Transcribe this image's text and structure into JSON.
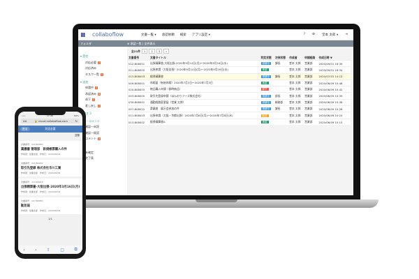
{
  "app": {
    "logo": "collaboflow",
    "menu": [
      "文書一覧 ▾",
      "承認依頼",
      "検索",
      "アプリ設定 ▾"
    ],
    "help": "?",
    "gear": "⚙",
    "user": "堂本 太郎 ▾",
    "logout": "⇥"
  },
  "bar": {
    "folder": "フォルダ",
    "crumb": "⊕ 承認一覧 | 全件表示"
  },
  "sidebar": [
    {
      "group": "▾ 受信",
      "items": [
        {
          "label": "対応必要",
          "badge": "2"
        },
        {
          "label": "対応済み",
          "badge": ""
        },
        {
          "label": "タスク一覧",
          "badge": "2"
        }
      ]
    },
    {
      "group": "▾ 送信",
      "items": [
        {
          "label": "申請中",
          "badge": "2"
        },
        {
          "label": "承認済み",
          "badge": "8"
        },
        {
          "label": "却下",
          "badge": "2"
        },
        {
          "label": "差し戻し",
          "badge": "2"
        }
      ]
    },
    {
      "group": "下書き 3",
      "items": []
    },
    {
      "group": "確認・コメント",
      "items": [
        {
          "label": "確認一未読",
          "badge": ""
        },
        {
          "label": "確認一既読",
          "badge": ""
        },
        {
          "label": "コメント",
          "badge": "4"
        }
      ]
    },
    {
      "group": "一般",
      "items": [
        {
          "label": "未確定",
          "badge": ""
        },
        {
          "label": "完了表",
          "badge": ""
        }
      ]
    }
  ],
  "pager": {
    "total": "全21件",
    "pages": [
      "1",
      "2",
      "3",
      "»"
    ]
  },
  "table": {
    "headers": [
      "文書番号",
      "文書タイトル",
      "判定状態",
      "次待状態",
      "作成者",
      "申請経路",
      "作成日時 ▼"
    ],
    "rows": [
      [
        "012-B08001",
        "出張精算書-大阪出張-2020年9月14日(月)〜2020年9月16日(水)",
        "申請中",
        "課長",
        "堂本 太郎",
        "営業部",
        "2020/09/01 16:39"
      ],
      [
        "011-B08005",
        "出張申請（大阪出張）2020年9月14日(月)〜2020年9月16日(水)",
        "承認",
        "",
        "堂本 太郎",
        "営業部",
        "2020/09/01 16:34"
      ],
      [
        "013-B08003",
        "経費精算書",
        "申請中",
        "課長",
        "堂本 太郎",
        "営業部",
        "2020/07/15 14:12"
      ],
      [
        "009-B08001",
        "休暇届（有給休暇）2020年7月3日〜2020年7月3日",
        "承認",
        "",
        "堂本 太郎",
        "営業部",
        "2020/06/09 10:48"
      ],
      [
        "020-B08003",
        "物品購入申請（即時納品）",
        "却下",
        "",
        "堂本 太郎",
        "営業部",
        "2020/06/09 10:42"
      ],
      [
        "003-B08005",
        "取引先登録申請（ほんのりフーズ株式会社）",
        "申請中",
        "部長",
        "堂本 太郎",
        "営業部",
        "2020/06/09 10:39"
      ],
      [
        "039-B08001",
        "通勤経路変更届（営業 太郎）",
        "申請中",
        "総務部",
        "堂本 太郎",
        "営業部",
        "2020/06/09 10:36"
      ],
      [
        "007-B08012",
        "稟議書　展示会参加の件",
        "申請中",
        "課長",
        "堂本 太郎",
        "営業部",
        "2020/06/09 10:28"
      ],
      [
        "011-B08003",
        "出張申請（大阪・京都出張）2020年7月6日(月)〜2020年7月8日(水)",
        "取消",
        "",
        "堂本 太郎",
        "営業部",
        "2020/06/09 10:24"
      ],
      [
        "013-B08002",
        "経費精算書A",
        "承認",
        "",
        "堂本 太郎",
        "営業部",
        "2020/06/09 10:15"
      ]
    ]
  },
  "status_colors": {
    "申請中": "#3a9ad9",
    "承認": "#1a9b6c",
    "却下": "#f05a4a",
    "取消": "#f7a21b"
  },
  "phone": {
    "time": "17:48",
    "battery": "82%",
    "aa": "AA",
    "url": "🔒 cloud.collaboflow.com",
    "back": "戻る",
    "title": "判定必要",
    "sort": "並替",
    "cards": [
      {
        "no": "文書番号：043-B0080",
        "title": "稟議書 管理部　新規帳票購入の件",
        "meta": "作成者：営業太郎　作成日：2020/06/09"
      },
      {
        "no": "文書番号：043-B0081",
        "title": "取引先登録 株式会社市川工業",
        "meta": "作成者：営業太郎　作成日：2020/06/09"
      },
      {
        "no": "文書番号：119-B0018",
        "title": "出張精算書-大阪出張-2020年3月16日(月)〜2020...",
        "meta": "作成者：営業太郎　作成日：2020/06/09"
      },
      {
        "no": "文書番号：127-B0080",
        "title": "勤怠届",
        "meta": "作成者：営業太郎　作成日：2020/06/09"
      }
    ],
    "page": "1/1",
    "toolbar": [
      "‹",
      "›",
      "⇧",
      "▢",
      "⧉"
    ]
  }
}
